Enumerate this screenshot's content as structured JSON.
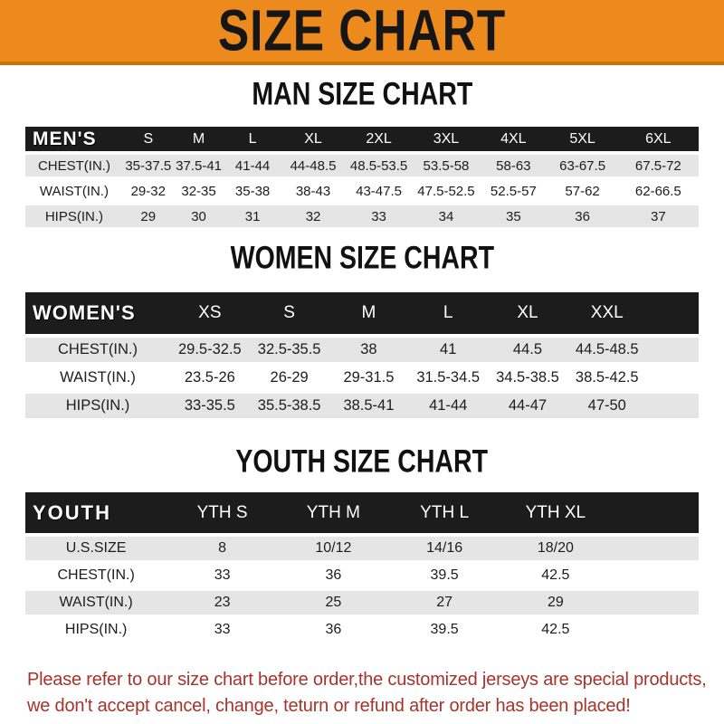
{
  "banner": {
    "title": "SIZE CHART"
  },
  "colors": {
    "banner_orange": "#EC8A1D",
    "banner_border": "#C9700F",
    "header_black": "#1c1c1c",
    "row_gray": "#e5e5e5",
    "note_red": "#A5342C"
  },
  "sections": [
    {
      "heading": "MAN SIZE CHART",
      "header_label": "MEN'S",
      "columns": [
        "S",
        "M",
        "L",
        "XL",
        "2XL",
        "3XL",
        "4XL",
        "5XL",
        "6XL"
      ],
      "rows": [
        {
          "label": "CHEST(IN.)",
          "values": [
            "35-37.5",
            "37.5-41",
            "41-44",
            "44-48.5",
            "48.5-53.5",
            "53.5-58",
            "58-63",
            "63-67.5",
            "67.5-72"
          ]
        },
        {
          "label": "WAIST(IN.)",
          "values": [
            "29-32",
            "32-35",
            "35-38",
            "38-43",
            "43-47.5",
            "47.5-52.5",
            "52.5-57",
            "57-62",
            "62-66.5"
          ]
        },
        {
          "label": "HIPS(IN.)",
          "values": [
            "29",
            "30",
            "31",
            "32",
            "33",
            "34",
            "35",
            "36",
            "37"
          ]
        }
      ]
    },
    {
      "heading": "WOMEN SIZE CHART",
      "header_label": "WOMEN'S",
      "columns": [
        "XS",
        "S",
        "M",
        "L",
        "XL",
        "XXL"
      ],
      "rows": [
        {
          "label": "CHEST(IN.)",
          "values": [
            "29.5-32.5",
            "32.5-35.5",
            "38",
            "41",
            "44.5",
            "44.5-48.5"
          ]
        },
        {
          "label": "WAIST(IN.)",
          "values": [
            "23.5-26",
            "26-29",
            "29-31.5",
            "31.5-34.5",
            "34.5-38.5",
            "38.5-42.5"
          ]
        },
        {
          "label": "HIPS(IN.)",
          "values": [
            "33-35.5",
            "35.5-38.5",
            "38.5-41",
            "41-44",
            "44-47",
            "47-50"
          ]
        }
      ]
    },
    {
      "heading": "YOUTH SIZE CHART",
      "header_label": "YOUTH",
      "columns": [
        "YTH S",
        "YTH M",
        "YTH L",
        "YTH XL"
      ],
      "rows": [
        {
          "label": "U.S.SIZE",
          "values": [
            "8",
            "10/12",
            "14/16",
            "18/20"
          ]
        },
        {
          "label": "CHEST(IN.)",
          "values": [
            "33",
            "36",
            "39.5",
            "42.5"
          ]
        },
        {
          "label": "WAIST(IN.)",
          "values": [
            "23",
            "25",
            "27",
            "29"
          ]
        },
        {
          "label": "HIPS(IN.)",
          "values": [
            "33",
            "36",
            "39.5",
            "42.5"
          ]
        }
      ]
    }
  ],
  "footer": {
    "line1": "Please refer to our size chart before order,the customized jerseys are special products,",
    "line2": "we don't accept cancel, change, teturn or refund after order has been placed!"
  }
}
